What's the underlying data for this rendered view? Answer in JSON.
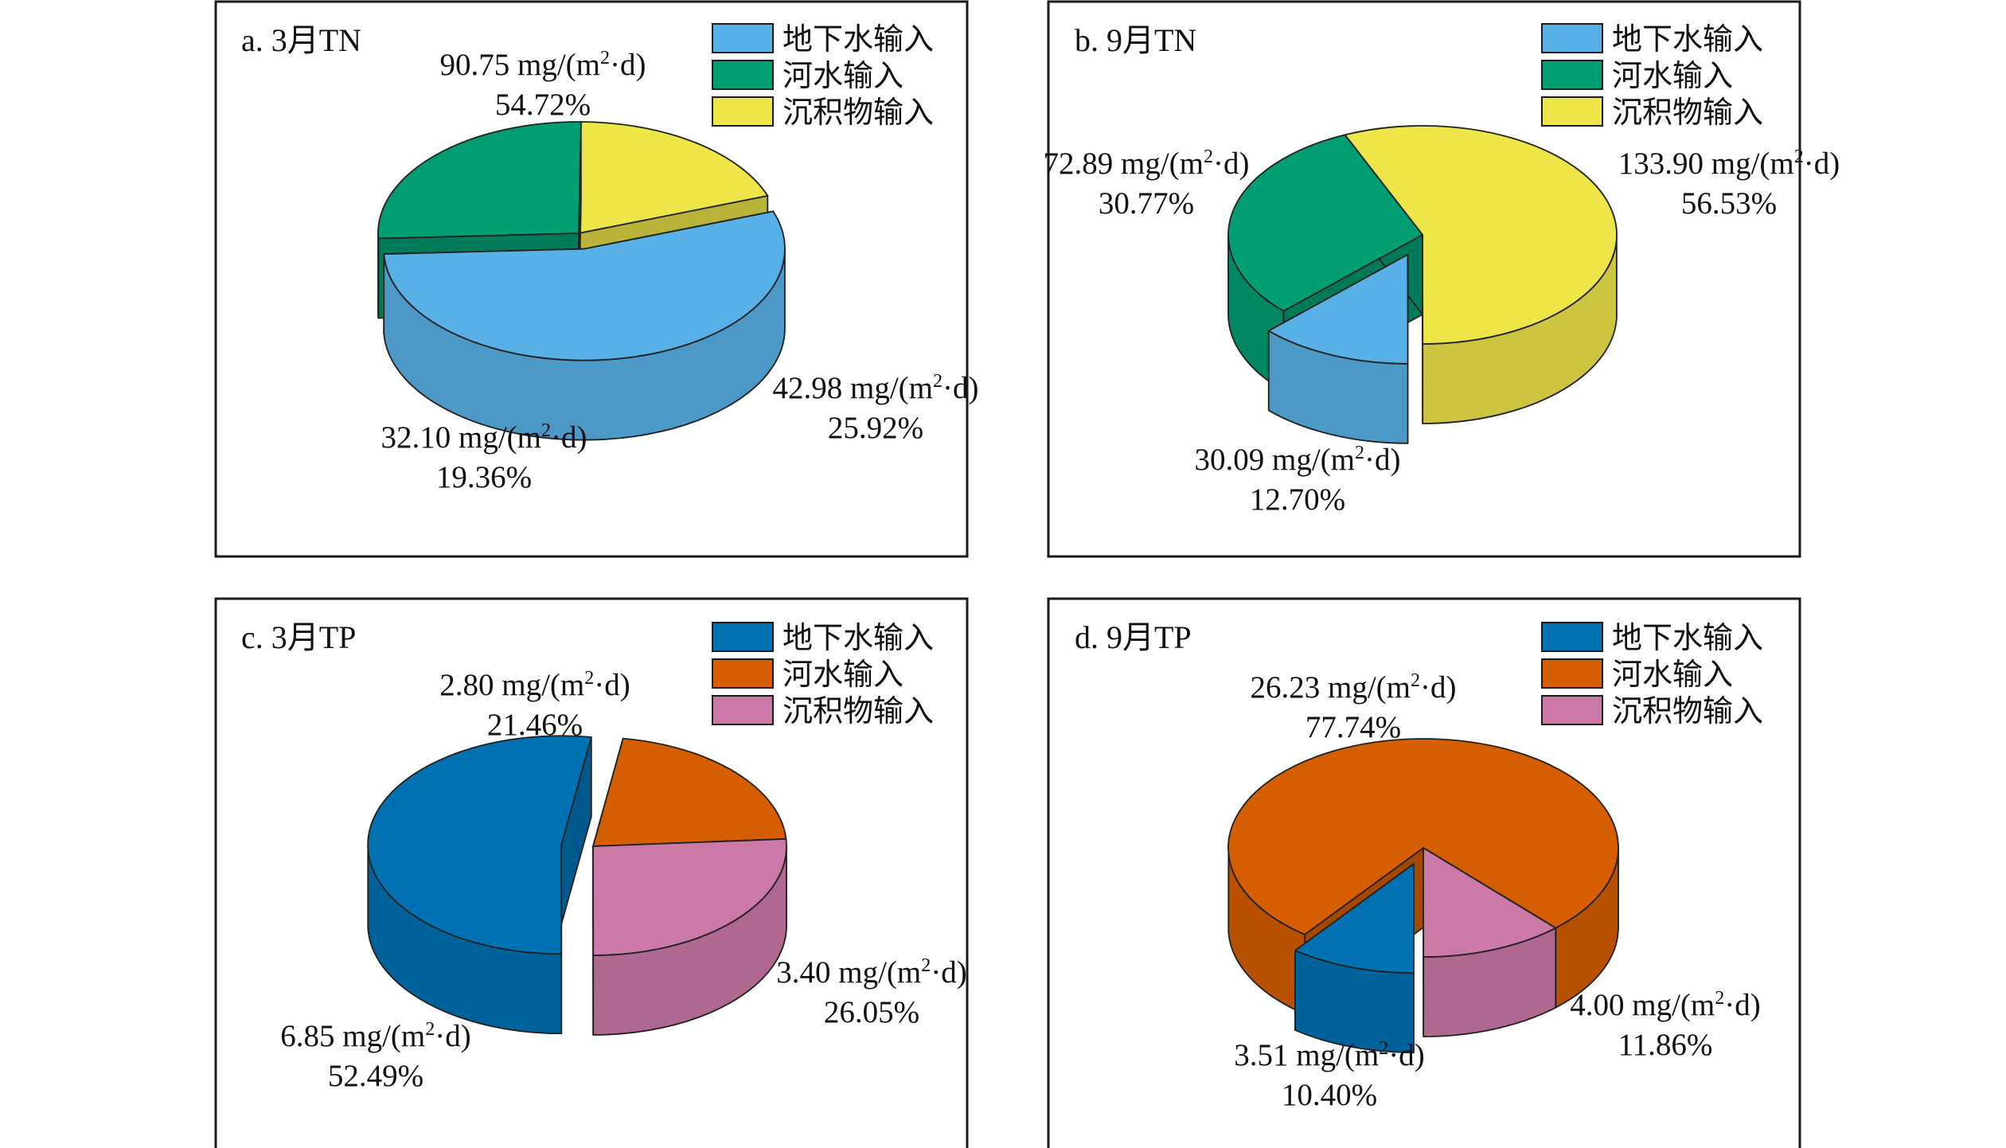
{
  "chart_data": [
    {
      "type": "pie",
      "title": "a. 3月TN",
      "legend_position": "top-right",
      "exploded": "地下水输入",
      "slices": [
        {
          "name": "地下水输入",
          "value": 90.75,
          "value_label": "90.75 mg/(m",
          "unit_tail": "·d)",
          "percent": 54.72,
          "percent_label": "54.72%",
          "color": "#58b1e6"
        },
        {
          "name": "河水输入",
          "value": 42.98,
          "value_label": "42.98 mg/(m",
          "unit_tail": "·d)",
          "percent": 25.92,
          "percent_label": "25.92%",
          "color": "#009e72"
        },
        {
          "name": "沉积物输入",
          "value": 32.1,
          "value_label": "32.10 mg/(m",
          "unit_tail": "·d)",
          "percent": 19.36,
          "percent_label": "19.36%",
          "color": "#eee549"
        }
      ]
    },
    {
      "type": "pie",
      "title": "b. 9月TN",
      "legend_position": "top-right",
      "exploded": "地下水输入",
      "slices": [
        {
          "name": "地下水输入",
          "value": 30.09,
          "value_label": "30.09 mg/(m",
          "unit_tail": "·d)",
          "percent": 12.7,
          "percent_label": "12.70%",
          "color": "#58b1e6"
        },
        {
          "name": "河水输入",
          "value": 72.89,
          "value_label": "72.89 mg/(m",
          "unit_tail": "·d)",
          "percent": 30.77,
          "percent_label": "30.77%",
          "color": "#009e72"
        },
        {
          "name": "沉积物输入",
          "value": 133.9,
          "value_label": "133.90 mg/(m",
          "unit_tail": "·d)",
          "percent": 56.53,
          "percent_label": "56.53%",
          "color": "#eee549"
        }
      ]
    },
    {
      "type": "pie",
      "title": "c. 3月TP",
      "legend_position": "top-right",
      "exploded": "地下水输入",
      "slices": [
        {
          "name": "地下水输入",
          "value": 6.85,
          "value_label": "6.85 mg/(m",
          "unit_tail": "·d)",
          "percent": 52.49,
          "percent_label": "52.49%",
          "color": "#0072b3"
        },
        {
          "name": "河水输入",
          "value": 2.8,
          "value_label": "2.80 mg/(m",
          "unit_tail": "·d)",
          "percent": 21.46,
          "percent_label": "21.46%",
          "color": "#d55e00"
        },
        {
          "name": "沉积物输入",
          "value": 3.4,
          "value_label": "3.40 mg/(m",
          "unit_tail": "·d)",
          "percent": 26.05,
          "percent_label": "26.05%",
          "color": "#cc79a7"
        }
      ]
    },
    {
      "type": "pie",
      "title": "d. 9月TP",
      "legend_position": "top-right",
      "exploded": "地下水输入",
      "slices": [
        {
          "name": "地下水输入",
          "value": 3.51,
          "value_label": "3.51 mg/(m",
          "unit_tail": "·d)",
          "percent": 10.4,
          "percent_label": "10.40%",
          "color": "#0072b3"
        },
        {
          "name": "河水输入",
          "value": 26.23,
          "value_label": "26.23 mg/(m",
          "unit_tail": "·d)",
          "percent": 77.74,
          "percent_label": "77.74%",
          "color": "#d55e00"
        },
        {
          "name": "沉积物输入",
          "value": 4.0,
          "value_label": "4.00 mg/(m",
          "unit_tail": "·d)",
          "percent": 11.86,
          "percent_label": "11.86%",
          "color": "#cc79a7"
        }
      ]
    }
  ],
  "unit_superscript": "2"
}
